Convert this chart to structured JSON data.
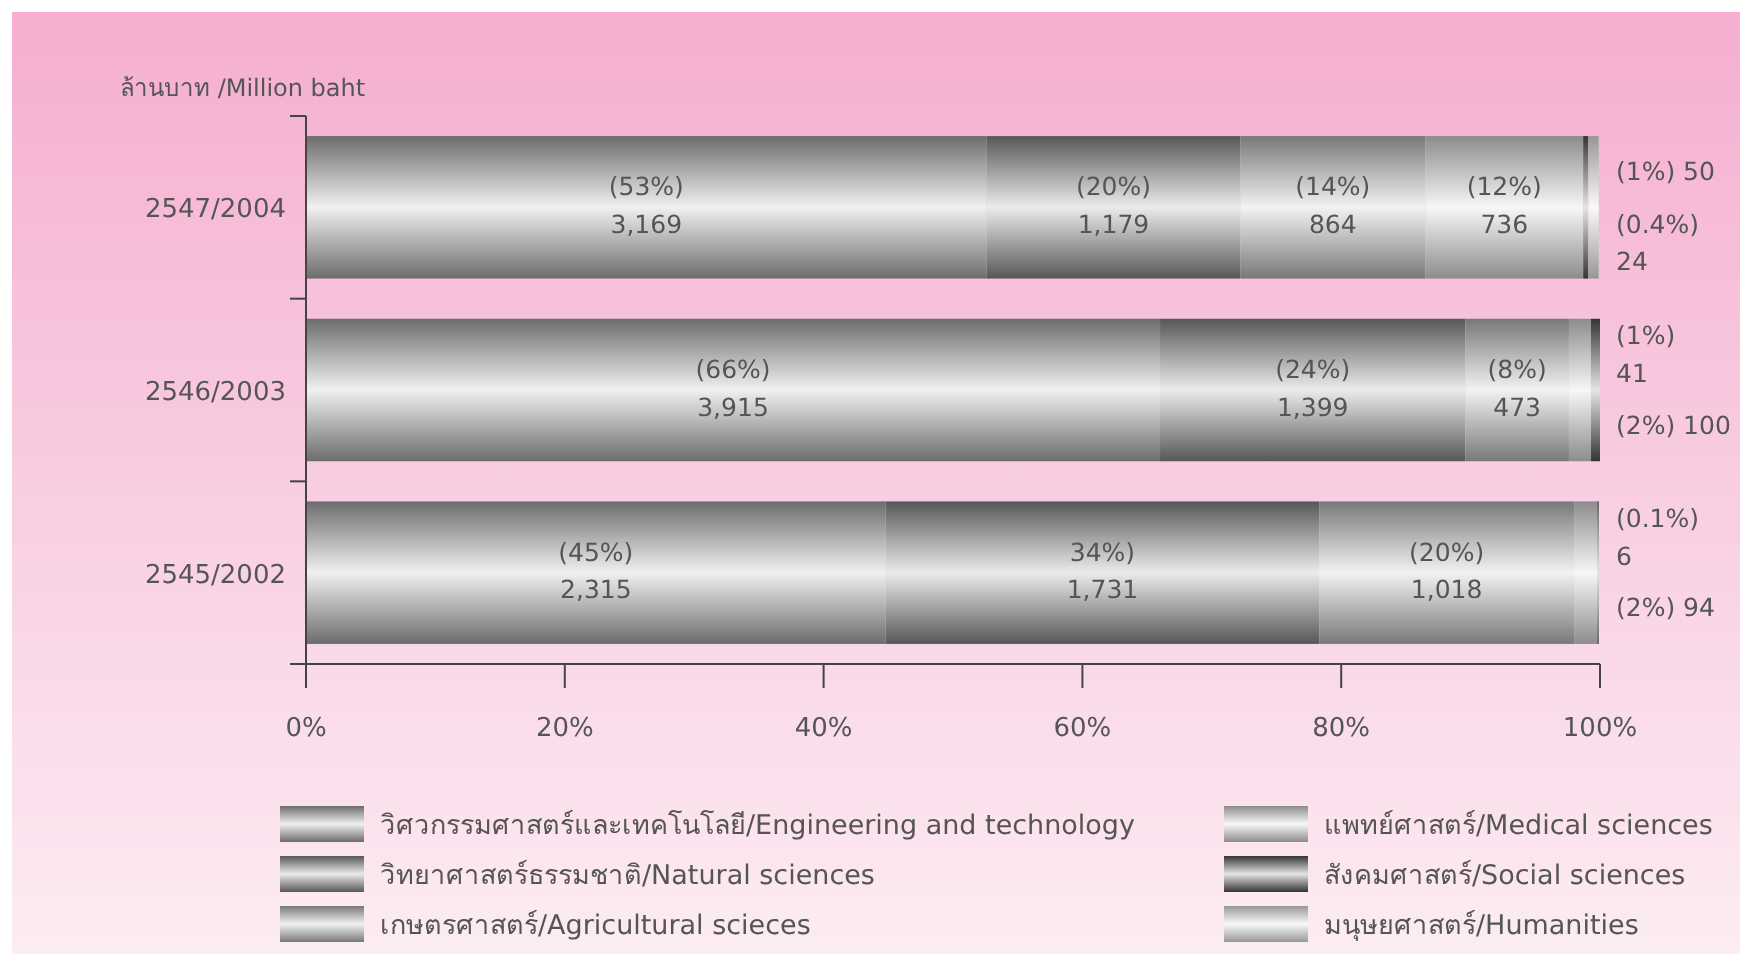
{
  "chart_data": {
    "type": "bar",
    "orientation": "horizontal",
    "stacked": true,
    "ylabel": "ล้านบาท /Million baht",
    "categories": [
      "2547/2004",
      "2546/2003",
      "2545/2002"
    ],
    "series": [
      {
        "name": "วิศวกรรมศาสตร์และเทคโนโลยี/Engineering and technology",
        "color": "#9a9a9a",
        "values": [
          52.6,
          66.0,
          44.8
        ],
        "value_labels": [
          "(53%)\n3,169",
          "(66%)\n3,915",
          "(45%)\n2,315"
        ]
      },
      {
        "name": "วิทยาศาสตร์ธรรมชาติ/Natural sciences",
        "color": "#7c7c7c",
        "values": [
          19.6,
          23.6,
          33.5
        ],
        "value_labels": [
          "(20%)\n1,179",
          "(24%)\n1,399",
          "34%)\n1,731"
        ]
      },
      {
        "name": "เกษตรศาสตร์/Agricultural scieces",
        "color": "#ababab",
        "values": [
          14.3,
          8.0,
          19.7
        ],
        "value_labels": [
          "(14%)\n864",
          "(8%)\n473",
          "(20%)\n1,018"
        ]
      },
      {
        "name": "แพทย์ศาสตร์/Medical sciences",
        "color": "#c8c8c8",
        "values": [
          12.2,
          1.7,
          1.8
        ],
        "value_labels": [
          "(12%)\n736",
          "(2%) 100",
          "(2%) 94"
        ]
      },
      {
        "name": "สังคมศาสตร์/Social sciences",
        "color": "#4a4a4a",
        "values": [
          0.4,
          0.7,
          0.1
        ],
        "value_labels": [
          "(0.4%)\n24",
          "(1%)\n41",
          "(0.1%)\n6"
        ]
      },
      {
        "name": "มนุษยศาสตร์/Humanities",
        "color": "#d8d8d8",
        "values": [
          0.8,
          null,
          null
        ],
        "value_labels": [
          "(1%) 50",
          null,
          null
        ]
      }
    ],
    "xlim": [
      0,
      100
    ],
    "xticks": [
      {
        "value": 0,
        "label": "0%"
      },
      {
        "value": 20,
        "label": "20%"
      },
      {
        "value": 40,
        "label": "40%"
      },
      {
        "value": 60,
        "label": "60%"
      },
      {
        "value": 80,
        "label": "80%"
      },
      {
        "value": 100,
        "label": "100%"
      }
    ],
    "grid": false,
    "legend": "bottom"
  }
}
